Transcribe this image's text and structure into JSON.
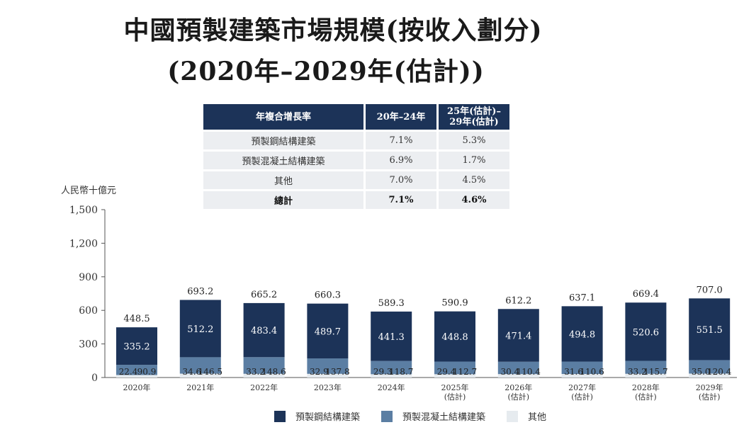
{
  "title": {
    "line1": "中國預製建築市場規模(按收入劃分)",
    "line2": "(2020年–2029年(估計))"
  },
  "cagr_table": {
    "headers": [
      "年複合增長率",
      "20年–24年",
      "25年(估計)–\n29年(估計)"
    ],
    "rows": [
      {
        "label": "預製鋼結構建築",
        "v1": "7.1%",
        "v2": "5.3%"
      },
      {
        "label": "預製混凝土結構建築",
        "v1": "6.9%",
        "v2": "1.7%"
      },
      {
        "label": "其他",
        "v1": "7.0%",
        "v2": "4.5%"
      },
      {
        "label": "總計",
        "v1": "7.1%",
        "v2": "4.6%"
      }
    ]
  },
  "colors": {
    "steel": "#1c3358",
    "concrete": "#5b7ea3",
    "other": "#e6ebef",
    "axis": "#555555"
  },
  "chart_data": {
    "type": "bar",
    "stacked": true,
    "ylabel": "人民幣十億元",
    "ylim": [
      0,
      1500
    ],
    "yticks": [
      0,
      300,
      600,
      900,
      1200,
      1500
    ],
    "ytick_labels": [
      "0",
      "300",
      "600",
      "900",
      "1,200",
      "1,500"
    ],
    "categories": [
      "2020年",
      "2021年",
      "2022年",
      "2023年",
      "2024年",
      "2025年\n(估計)",
      "2026年\n(估計)",
      "2027年\n(估計)",
      "2028年\n(估計)",
      "2029年\n(估計)"
    ],
    "series": [
      {
        "name": "其他",
        "key": "other",
        "values": [
          22.4,
          34.6,
          33.2,
          32.9,
          29.3,
          29.4,
          30.4,
          31.6,
          33.2,
          35.0
        ]
      },
      {
        "name": "預製混凝土結構建築",
        "key": "concrete",
        "values": [
          90.9,
          146.5,
          148.6,
          137.8,
          118.7,
          112.7,
          110.4,
          110.6,
          115.7,
          120.4
        ]
      },
      {
        "name": "預製鋼結構建築",
        "key": "steel",
        "values": [
          335.2,
          512.2,
          483.4,
          489.7,
          441.3,
          448.8,
          471.4,
          494.8,
          520.6,
          551.5
        ]
      }
    ],
    "totals": [
      448.5,
      693.2,
      665.2,
      660.3,
      589.3,
      590.9,
      612.2,
      637.1,
      669.4,
      707.0
    ],
    "legend": [
      {
        "key": "steel",
        "label": "預製鋼結構建築"
      },
      {
        "key": "concrete",
        "label": "預製混凝土結構建築"
      },
      {
        "key": "other",
        "label": "其他"
      }
    ]
  }
}
